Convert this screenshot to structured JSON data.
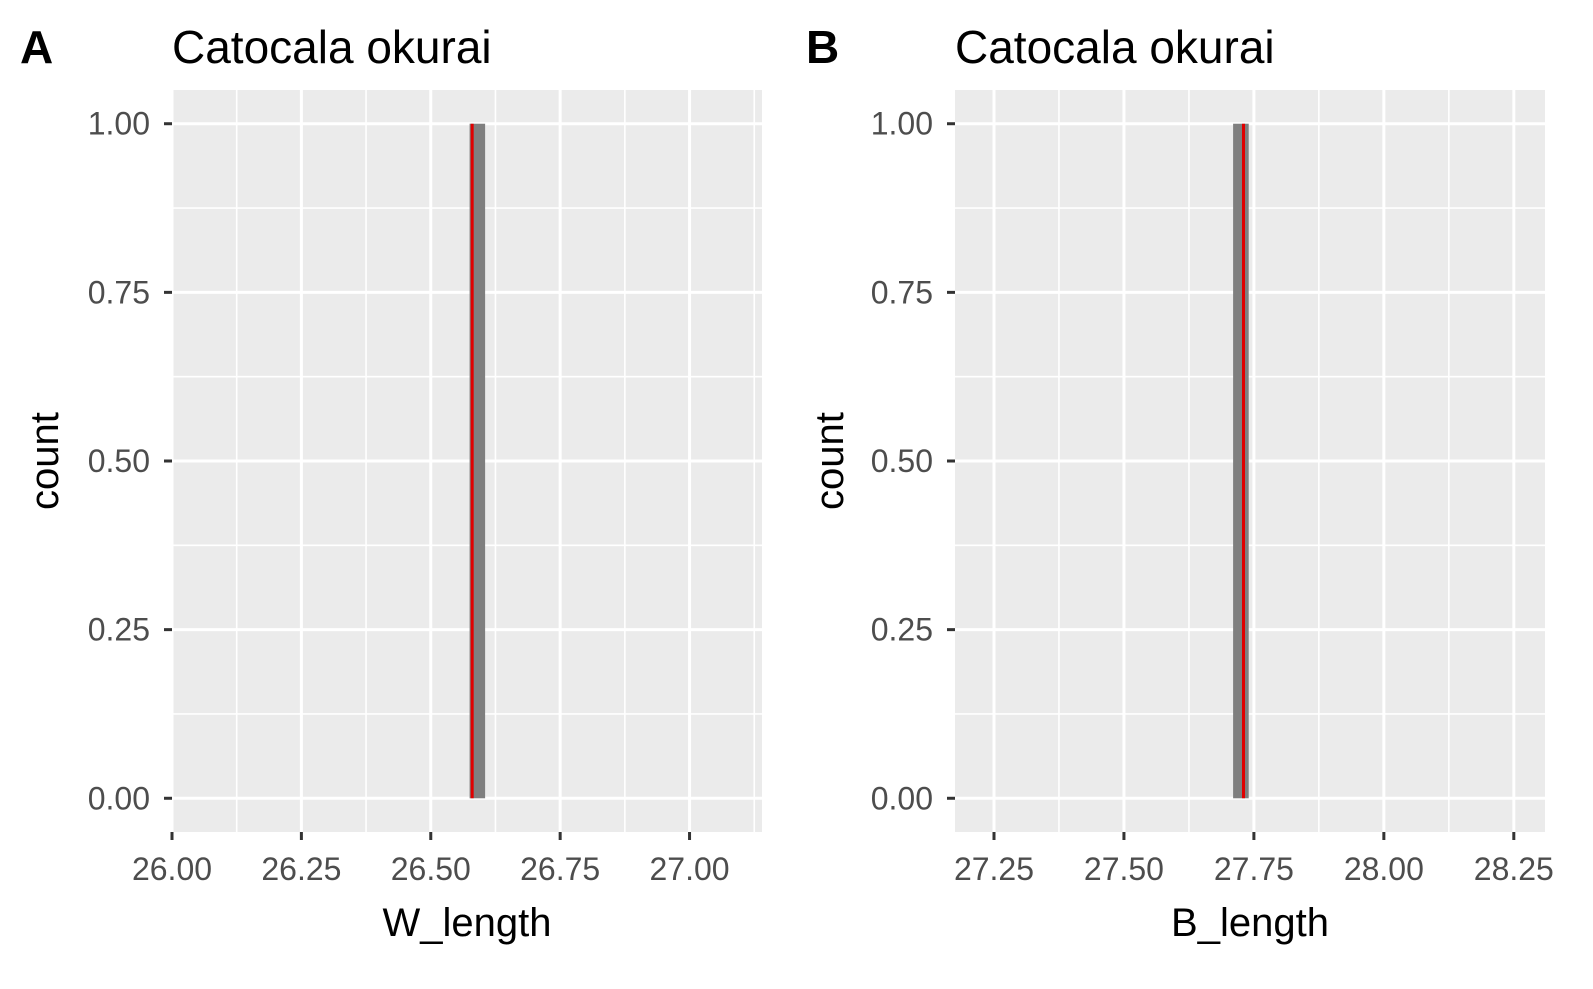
{
  "chart_data": [
    {
      "type": "bar",
      "tag": "A",
      "title": "Catocala okurai",
      "xlabel": "W_length",
      "ylabel": "count",
      "xlim": [
        26.0,
        27.14
      ],
      "ylim": [
        -0.05,
        1.05
      ],
      "x_ticks": [
        26.0,
        26.25,
        26.5,
        26.75,
        27.0
      ],
      "x_tick_labels": [
        "26.00",
        "26.25",
        "26.50",
        "26.75",
        "27.00"
      ],
      "y_ticks": [
        0,
        0.25,
        0.5,
        0.75,
        1.0
      ],
      "y_tick_labels": [
        "0.00",
        "0.25",
        "0.50",
        "0.75",
        "1.00"
      ],
      "bins": [
        {
          "xmin": 26.575,
          "xmax": 26.605,
          "count": 1
        }
      ],
      "vline": {
        "x": 26.58,
        "color": "#e00000"
      },
      "bar_color": "#7f7f7f",
      "panel_background": "#ebebeb",
      "grid": true
    },
    {
      "type": "bar",
      "tag": "B",
      "title": "Catocala okurai",
      "xlabel": "B_length",
      "ylabel": "count",
      "xlim": [
        27.175,
        28.31
      ],
      "ylim": [
        -0.05,
        1.05
      ],
      "x_ticks": [
        27.25,
        27.5,
        27.75,
        28.0,
        28.25
      ],
      "x_tick_labels": [
        "27.25",
        "27.50",
        "27.75",
        "28.00",
        "28.25"
      ],
      "y_ticks": [
        0,
        0.25,
        0.5,
        0.75,
        1.0
      ],
      "y_tick_labels": [
        "0.00",
        "0.25",
        "0.50",
        "0.75",
        "1.00"
      ],
      "bins": [
        {
          "xmin": 27.71,
          "xmax": 27.74,
          "count": 1
        }
      ],
      "vline": {
        "x": 27.73,
        "color": "#e00000"
      },
      "bar_color": "#7f7f7f",
      "panel_background": "#ebebeb",
      "grid": true
    }
  ]
}
